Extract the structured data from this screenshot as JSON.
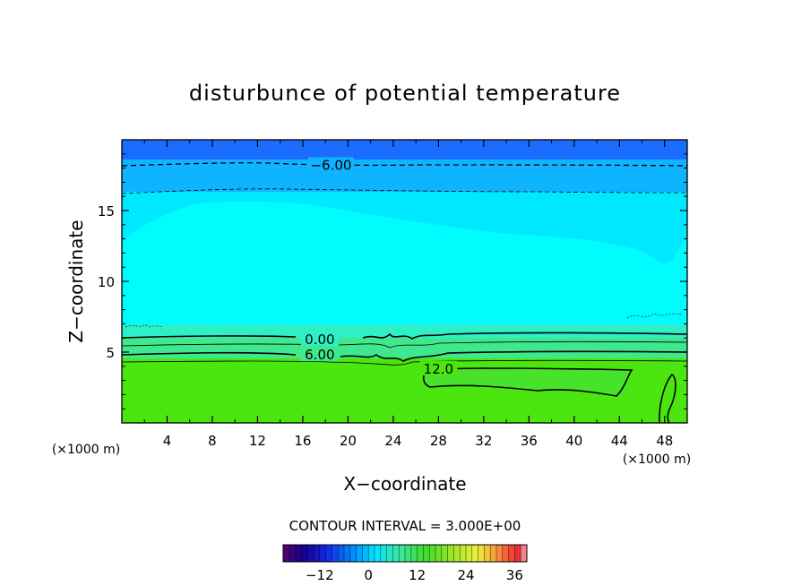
{
  "chart_data": {
    "type": "contour",
    "title": "disturbunce of potential temperature",
    "xlabel": "X−coordinate",
    "ylabel": "Z−coordinate",
    "x_unit_left": "(×1000 m)",
    "x_unit_right": "(×1000 m)",
    "xlim": [
      0,
      50
    ],
    "ylim": [
      0,
      20
    ],
    "x_ticks": [
      4,
      8,
      12,
      16,
      20,
      24,
      28,
      32,
      36,
      40,
      44,
      48
    ],
    "y_ticks": [
      5,
      10,
      15
    ],
    "contour_interval_text": "CONTOUR INTERVAL = 3.000E+00",
    "contour_labels": [
      {
        "text": "−6.00",
        "x": 18.5,
        "z": 18.2
      },
      {
        "text": "0.00",
        "x": 17.5,
        "z": 5.9
      },
      {
        "text": "6.00",
        "x": 17.5,
        "z": 4.8
      },
      {
        "text": "12.0",
        "x": 28.0,
        "z": 3.8
      }
    ],
    "colorbar": {
      "ticks": [
        {
          "label": "−12",
          "value": -12
        },
        {
          "label": "0",
          "value": 0
        },
        {
          "label": "12",
          "value": 12
        },
        {
          "label": "24",
          "value": 24
        },
        {
          "label": "36",
          "value": 36
        }
      ],
      "range": [
        -21,
        39
      ]
    },
    "colors": {
      "top_layer": "#1a6cff",
      "mid_layer": "#00e8ff",
      "main_layer": "#00fdfd",
      "low_layer": "#3fe88c",
      "bottom_layer": "#4be60f"
    }
  }
}
